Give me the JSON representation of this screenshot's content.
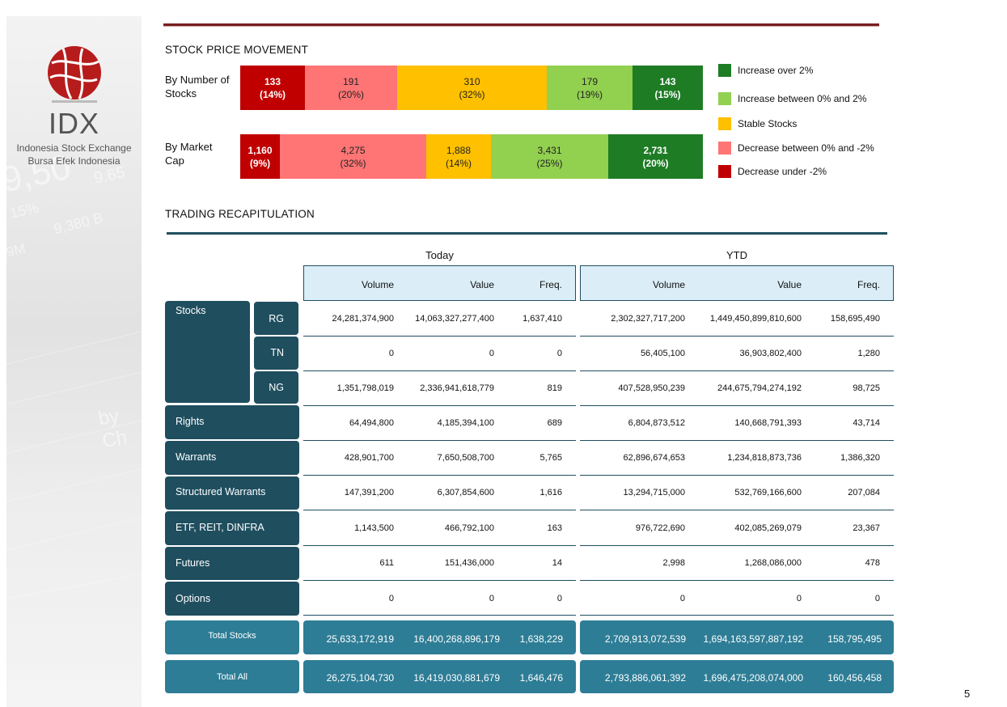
{
  "logo": {
    "wordmark": "IDX",
    "line1": "Indonesia Stock Exchange",
    "line2": "Bursa  Efek  Indonesia"
  },
  "sidebar_bg_text": [
    "9,50",
    "9.65",
    "15%",
    "9,380 B",
    "9M",
    "by Ch"
  ],
  "stock_price_movement": {
    "title": "STOCK PRICE MOVEMENT",
    "by_number_label": "By Number of Stocks",
    "by_market_cap_label": "By Market Cap",
    "by_number": [
      {
        "value": "133",
        "pct": "(14%)",
        "share": 14,
        "color": "#c00000"
      },
      {
        "value": "191",
        "pct": "(20%)",
        "share": 20,
        "color": "#ff7575"
      },
      {
        "value": "310",
        "pct": "(32%)",
        "share": 32,
        "color": "#ffc000"
      },
      {
        "value": "179",
        "pct": "(19%)",
        "share": 19,
        "color": "#92d050"
      },
      {
        "value": "143",
        "pct": "(15%)",
        "share": 15,
        "color": "#1e7c25"
      }
    ],
    "by_market_cap": [
      {
        "value": "1,160",
        "pct": "(9%)",
        "share": 9,
        "color": "#c00000"
      },
      {
        "value": "4,275",
        "pct": "(32%)",
        "share": 32,
        "color": "#ff7575"
      },
      {
        "value": "1,888",
        "pct": "(14%)",
        "share": 14,
        "color": "#ffc000"
      },
      {
        "value": "3,431",
        "pct": "(25%)",
        "share": 25,
        "color": "#92d050"
      },
      {
        "value": "2,731",
        "pct": "(20%)",
        "share": 20,
        "color": "#1e7c25"
      }
    ],
    "legend": [
      {
        "label": "Increase over 2%",
        "color": "#1e7c25"
      },
      {
        "label": "Increase between 0% and 2%",
        "color": "#92d050"
      },
      {
        "label": "Stable Stocks",
        "color": "#ffc000"
      },
      {
        "label": "Decrease between 0% and -2%",
        "color": "#ff7575"
      },
      {
        "label": "Decrease under -2%",
        "color": "#c00000"
      }
    ]
  },
  "trading": {
    "title": "TRADING RECAPITULATION",
    "today_label": "Today",
    "ytd_label": "YTD",
    "columns": [
      "Volume",
      "Value",
      "Freq.",
      "Volume",
      "Value",
      "Freq."
    ],
    "stocks_label": "Stocks",
    "rows": [
      {
        "label": "RG",
        "values": [
          "24,281,374,900",
          "14,063,327,277,400",
          "1,637,410",
          "2,302,327,717,200",
          "1,449,450,899,810,600",
          "158,695,490"
        ]
      },
      {
        "label": "TN",
        "values": [
          "0",
          "0",
          "0",
          "56,405,100",
          "36,903,802,400",
          "1,280"
        ]
      },
      {
        "label": "NG",
        "values": [
          "1,351,798,019",
          "2,336,941,618,779",
          "819",
          "407,528,950,239",
          "244,675,794,274,192",
          "98,725"
        ]
      },
      {
        "label": "Rights",
        "values": [
          "64,494,800",
          "4,185,394,100",
          "689",
          "6,804,873,512",
          "140,668,791,393",
          "43,714"
        ]
      },
      {
        "label": "Warrants",
        "values": [
          "428,901,700",
          "7,650,508,700",
          "5,765",
          "62,896,674,653",
          "1,234,818,873,736",
          "1,386,320"
        ]
      },
      {
        "label": "Structured Warrants",
        "values": [
          "147,391,200",
          "6,307,854,600",
          "1,616",
          "13,294,715,000",
          "532,769,166,600",
          "207,084"
        ]
      },
      {
        "label": "ETF, REIT, DINFRA",
        "values": [
          "1,143,500",
          "466,792,100",
          "163",
          "976,722,690",
          "402,085,269,079",
          "23,367"
        ]
      },
      {
        "label": "Futures",
        "values": [
          "611",
          "151,436,000",
          "14",
          "2,998",
          "1,268,086,000",
          "478"
        ]
      },
      {
        "label": "Options",
        "values": [
          "0",
          "0",
          "0",
          "0",
          "0",
          "0"
        ]
      }
    ],
    "totals": [
      {
        "label": "Total Stocks",
        "values": [
          "25,633,172,919",
          "16,400,268,896,179",
          "1,638,229",
          "2,709,913,072,539",
          "1,694,163,597,887,192",
          "158,795,495"
        ]
      },
      {
        "label": "Total All",
        "values": [
          "26,275,104,730",
          "16,419,030,881,679",
          "1,646,476",
          "2,793,886,061,392",
          "1,696,475,208,074,000",
          "160,456,458"
        ]
      }
    ]
  },
  "page_number": "5"
}
